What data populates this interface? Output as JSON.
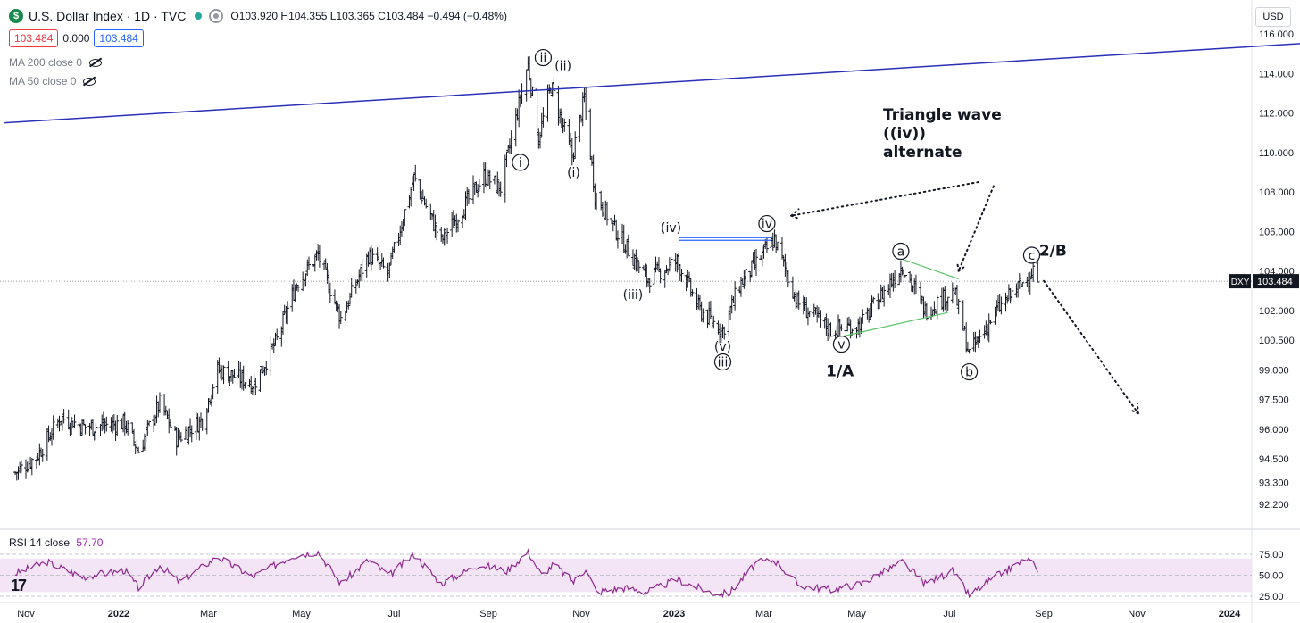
{
  "header": {
    "logo_letter": "$",
    "title": "U.S. Dollar Index · 1D · TVC",
    "ohlc": "O103.920 H104.355 L103.365 C103.484 −0.494 (−0.48%)",
    "bid": "103.484",
    "spread": "0.000",
    "ask": "103.484",
    "currency": "USD"
  },
  "indicators": {
    "ma200": "MA 200 close 0",
    "ma50": "MA 50 close 0",
    "rsi_label": "RSI 14 close",
    "rsi_value": "57.70"
  },
  "colors": {
    "up": "#131722",
    "trendline": "#2a2fb8",
    "rsi_line": "#8e2a8e",
    "rsi_band": "#f3e5f5",
    "green_line": "#5cc46a",
    "box_line": "#2962ff"
  },
  "chart_data": {
    "type": "ohlc",
    "symbol": "DXY",
    "last_price": "103.484",
    "y_ticks": [
      "116.000",
      "114.000",
      "112.000",
      "110.000",
      "108.000",
      "106.000",
      "104.000",
      "102.000",
      "100.500",
      "99.000",
      "97.500",
      "96.000",
      "94.500",
      "93.300",
      "92.200"
    ],
    "y_tick_values": [
      116,
      114,
      112,
      110,
      108,
      106,
      104,
      102,
      100.5,
      99,
      97.5,
      96,
      94.5,
      93.3,
      92.2
    ],
    "x_labels": [
      "Nov",
      "2022",
      "Mar",
      "May",
      "Jul",
      "Sep",
      "Nov",
      "2023",
      "Mar",
      "May",
      "Jul",
      "Sep",
      "Nov",
      "2024"
    ],
    "x_label_dates": [
      "2021-11-01",
      "2022-01-01",
      "2022-03-01",
      "2022-05-01",
      "2022-07-01",
      "2022-09-01",
      "2022-11-01",
      "2023-01-01",
      "2023-03-01",
      "2023-05-01",
      "2023-07-01",
      "2023-09-01",
      "2023-11-01",
      "2024-01-01"
    ],
    "close_series": [
      {
        "date": "2021-10-25",
        "value": 93.8
      },
      {
        "date": "2021-11-08",
        "value": 94.6
      },
      {
        "date": "2021-11-24",
        "value": 96.6
      },
      {
        "date": "2021-12-10",
        "value": 96.1
      },
      {
        "date": "2022-01-05",
        "value": 96.3
      },
      {
        "date": "2022-01-14",
        "value": 94.9
      },
      {
        "date": "2022-01-28",
        "value": 97.3
      },
      {
        "date": "2022-02-08",
        "value": 95.5
      },
      {
        "date": "2022-02-25",
        "value": 96.5
      },
      {
        "date": "2022-03-07",
        "value": 99.0
      },
      {
        "date": "2022-03-31",
        "value": 98.3
      },
      {
        "date": "2022-04-15",
        "value": 100.5
      },
      {
        "date": "2022-04-28",
        "value": 103.4
      },
      {
        "date": "2022-05-12",
        "value": 104.8
      },
      {
        "date": "2022-05-27",
        "value": 101.6
      },
      {
        "date": "2022-06-14",
        "value": 104.8
      },
      {
        "date": "2022-06-27",
        "value": 103.9
      },
      {
        "date": "2022-07-14",
        "value": 108.7
      },
      {
        "date": "2022-08-01",
        "value": 105.5
      },
      {
        "date": "2022-08-29",
        "value": 108.8
      },
      {
        "date": "2022-09-09",
        "value": 108.2
      },
      {
        "date": "2022-09-27",
        "value": 114.5
      },
      {
        "date": "2022-10-04",
        "value": 110.7
      },
      {
        "date": "2022-10-12",
        "value": 113.4
      },
      {
        "date": "2022-10-26",
        "value": 109.8
      },
      {
        "date": "2022-11-03",
        "value": 112.7
      },
      {
        "date": "2022-11-10",
        "value": 107.9
      },
      {
        "date": "2022-11-25",
        "value": 105.9
      },
      {
        "date": "2022-12-14",
        "value": 103.6
      },
      {
        "date": "2023-01-03",
        "value": 104.5
      },
      {
        "date": "2023-01-18",
        "value": 102.0
      },
      {
        "date": "2023-02-02",
        "value": 101.0
      },
      {
        "date": "2023-02-13",
        "value": 103.3
      },
      {
        "date": "2023-03-08",
        "value": 105.6
      },
      {
        "date": "2023-03-23",
        "value": 102.4
      },
      {
        "date": "2023-04-14",
        "value": 101.0
      },
      {
        "date": "2023-05-04",
        "value": 101.3
      },
      {
        "date": "2023-05-31",
        "value": 104.3
      },
      {
        "date": "2023-06-15",
        "value": 102.0
      },
      {
        "date": "2023-07-04",
        "value": 103.0
      },
      {
        "date": "2023-07-14",
        "value": 99.8
      },
      {
        "date": "2023-08-01",
        "value": 102.0
      },
      {
        "date": "2023-08-18",
        "value": 103.4
      },
      {
        "date": "2023-08-25",
        "value": 104.1
      },
      {
        "date": "2023-08-28",
        "value": 103.5
      }
    ],
    "rsi": {
      "ticks": [
        "75.00",
        "50.00",
        "25.00"
      ],
      "tick_values": [
        75,
        50,
        25
      ],
      "band": [
        30,
        70
      ],
      "series": [
        {
          "date": "2021-10-25",
          "value": 52
        },
        {
          "date": "2021-11-15",
          "value": 66
        },
        {
          "date": "2021-12-08",
          "value": 48
        },
        {
          "date": "2022-01-05",
          "value": 56
        },
        {
          "date": "2022-01-14",
          "value": 35
        },
        {
          "date": "2022-01-28",
          "value": 62
        },
        {
          "date": "2022-02-10",
          "value": 42
        },
        {
          "date": "2022-03-07",
          "value": 72
        },
        {
          "date": "2022-03-30",
          "value": 48
        },
        {
          "date": "2022-04-25",
          "value": 73
        },
        {
          "date": "2022-05-12",
          "value": 78
        },
        {
          "date": "2022-05-27",
          "value": 40
        },
        {
          "date": "2022-06-14",
          "value": 68
        },
        {
          "date": "2022-06-28",
          "value": 50
        },
        {
          "date": "2022-07-14",
          "value": 75
        },
        {
          "date": "2022-08-01",
          "value": 40
        },
        {
          "date": "2022-08-26",
          "value": 63
        },
        {
          "date": "2022-09-13",
          "value": 55
        },
        {
          "date": "2022-09-27",
          "value": 78
        },
        {
          "date": "2022-10-06",
          "value": 50
        },
        {
          "date": "2022-10-14",
          "value": 63
        },
        {
          "date": "2022-10-27",
          "value": 42
        },
        {
          "date": "2022-11-04",
          "value": 58
        },
        {
          "date": "2022-11-11",
          "value": 30
        },
        {
          "date": "2022-11-30",
          "value": 35
        },
        {
          "date": "2022-12-14",
          "value": 30
        },
        {
          "date": "2023-01-03",
          "value": 45
        },
        {
          "date": "2023-01-26",
          "value": 29
        },
        {
          "date": "2023-02-06",
          "value": 28
        },
        {
          "date": "2023-02-24",
          "value": 65
        },
        {
          "date": "2023-03-08",
          "value": 68
        },
        {
          "date": "2023-03-24",
          "value": 38
        },
        {
          "date": "2023-04-14",
          "value": 33
        },
        {
          "date": "2023-05-04",
          "value": 40
        },
        {
          "date": "2023-05-31",
          "value": 66
        },
        {
          "date": "2023-06-15",
          "value": 40
        },
        {
          "date": "2023-07-03",
          "value": 55
        },
        {
          "date": "2023-07-14",
          "value": 26
        },
        {
          "date": "2023-07-31",
          "value": 48
        },
        {
          "date": "2023-08-21",
          "value": 70
        },
        {
          "date": "2023-08-28",
          "value": 57.7
        }
      ]
    },
    "wave_labels": [
      {
        "text": "i",
        "circled": true,
        "date": "2022-09-22",
        "price": 109.5
      },
      {
        "text": "ii",
        "circled": true,
        "date": "2022-10-07",
        "price": 114.8
      },
      {
        "text": "(ii)",
        "circled": false,
        "date": "2022-10-20",
        "price": 114.4
      },
      {
        "text": "(i)",
        "circled": false,
        "date": "2022-10-27",
        "price": 109.0
      },
      {
        "text": "(iv)",
        "circled": false,
        "date": "2022-12-30",
        "price": 106.2
      },
      {
        "text": "iv",
        "circled": true,
        "date": "2023-03-03",
        "price": 106.4
      },
      {
        "text": "(iii)",
        "circled": false,
        "date": "2022-12-05",
        "price": 102.8
      },
      {
        "text": "(v)",
        "circled": false,
        "date": "2023-02-02",
        "price": 100.2
      },
      {
        "text": "iii",
        "circled": true,
        "date": "2023-02-02",
        "price": 99.4
      },
      {
        "text": "v",
        "circled": true,
        "date": "2023-04-21",
        "price": 100.3
      },
      {
        "text": "1/A",
        "circled": false,
        "bold": true,
        "date": "2023-04-20",
        "price": 98.9
      },
      {
        "text": "a",
        "circled": true,
        "date": "2023-05-30",
        "price": 105.0
      },
      {
        "text": "b",
        "circled": true,
        "date": "2023-07-14",
        "price": 98.9
      },
      {
        "text": "c",
        "circled": true,
        "date": "2023-08-24",
        "price": 104.8
      },
      {
        "text": "2/B",
        "circled": false,
        "bold": true,
        "date": "2023-09-07",
        "price": 105.0
      }
    ],
    "annotations": [
      "Triangle wave",
      "((iv))",
      "alternate"
    ],
    "trendline": {
      "start": {
        "date": "2021-10-18",
        "price": 111.5
      },
      "end": {
        "date": "2024-03-07",
        "price": 115.6
      }
    },
    "box_line": {
      "start": {
        "date": "2023-01-04",
        "price": 105.6
      },
      "end": {
        "date": "2023-03-06",
        "price": 105.6
      }
    },
    "green_lines": [
      {
        "start": {
          "date": "2023-05-31",
          "price": 104.6
        },
        "end": {
          "date": "2023-07-07",
          "price": 103.6
        }
      },
      {
        "start": {
          "date": "2023-04-22",
          "price": 100.7
        },
        "end": {
          "date": "2023-06-30",
          "price": 101.9
        }
      }
    ],
    "dotted_arrows": [
      {
        "start": {
          "date": "2023-07-20",
          "price": 108.5
        },
        "end": {
          "date": "2023-03-19",
          "price": 106.8
        }
      },
      {
        "start": {
          "date": "2023-07-30",
          "price": 108.3
        },
        "end": {
          "date": "2023-07-07",
          "price": 104.0
        }
      },
      {
        "start": {
          "date": "2023-09-01",
          "price": 103.5
        },
        "end": {
          "date": "2023-11-02",
          "price": 96.8
        }
      }
    ]
  }
}
